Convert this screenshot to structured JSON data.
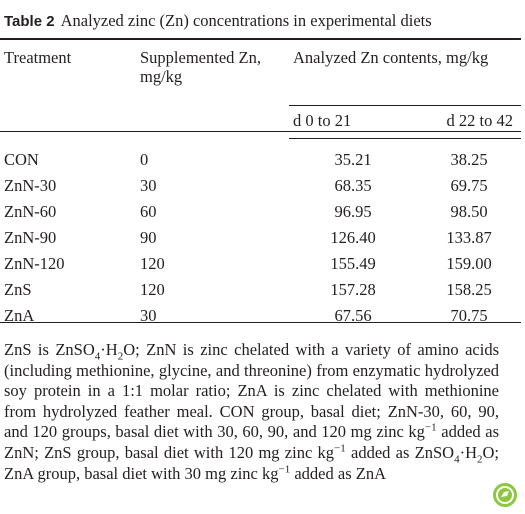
{
  "table": {
    "label": "Table 2",
    "title": "Analyzed zinc (Zn) concentrations in experimental diets",
    "headers": [
      "Treatment",
      "Supplemented Zn, mg/kg",
      "Analyzed Zn contents, mg/kg"
    ],
    "subheaders": [
      "d 0 to 21",
      "d 22 to 42"
    ],
    "rows": [
      [
        "CON",
        "0",
        "35.21",
        "38.25"
      ],
      [
        "ZnN-30",
        "30",
        "68.35",
        "69.75"
      ],
      [
        "ZnN-60",
        "60",
        "96.95",
        "98.50"
      ],
      [
        "ZnN-90",
        "90",
        "126.40",
        "133.87"
      ],
      [
        "ZnN-120",
        "120",
        "155.49",
        "159.00"
      ],
      [
        "ZnS",
        "120",
        "157.28",
        "158.25"
      ],
      [
        "ZnA",
        "30",
        "67.56",
        "70.75"
      ]
    ]
  },
  "footnote": {
    "parts": [
      "ZnS is ZnSO",
      "4",
      "·H",
      "2",
      "O; ZnN is zinc chelated with a variety of amino acids (including methionine, glycine, and threonine) from enzymatic hydrolyzed soy protein in a 1:1 molar ratio; ZnA is zinc chelated with methionine from hydrolyzed feather meal. CON group, basal diet; ZnN-30, 60, 90, and 120 groups, basal diet with 30, 60, 90, and 120 mg zinc kg",
      "−1",
      " added as ZnN; ZnS group, basal diet with 120 mg zinc kg",
      "−1",
      " added as ZnSO",
      "4",
      "·H",
      "2",
      "O; ZnA group, basal diet with 30 mg zinc kg",
      "−1",
      " added as ZnA"
    ]
  }
}
